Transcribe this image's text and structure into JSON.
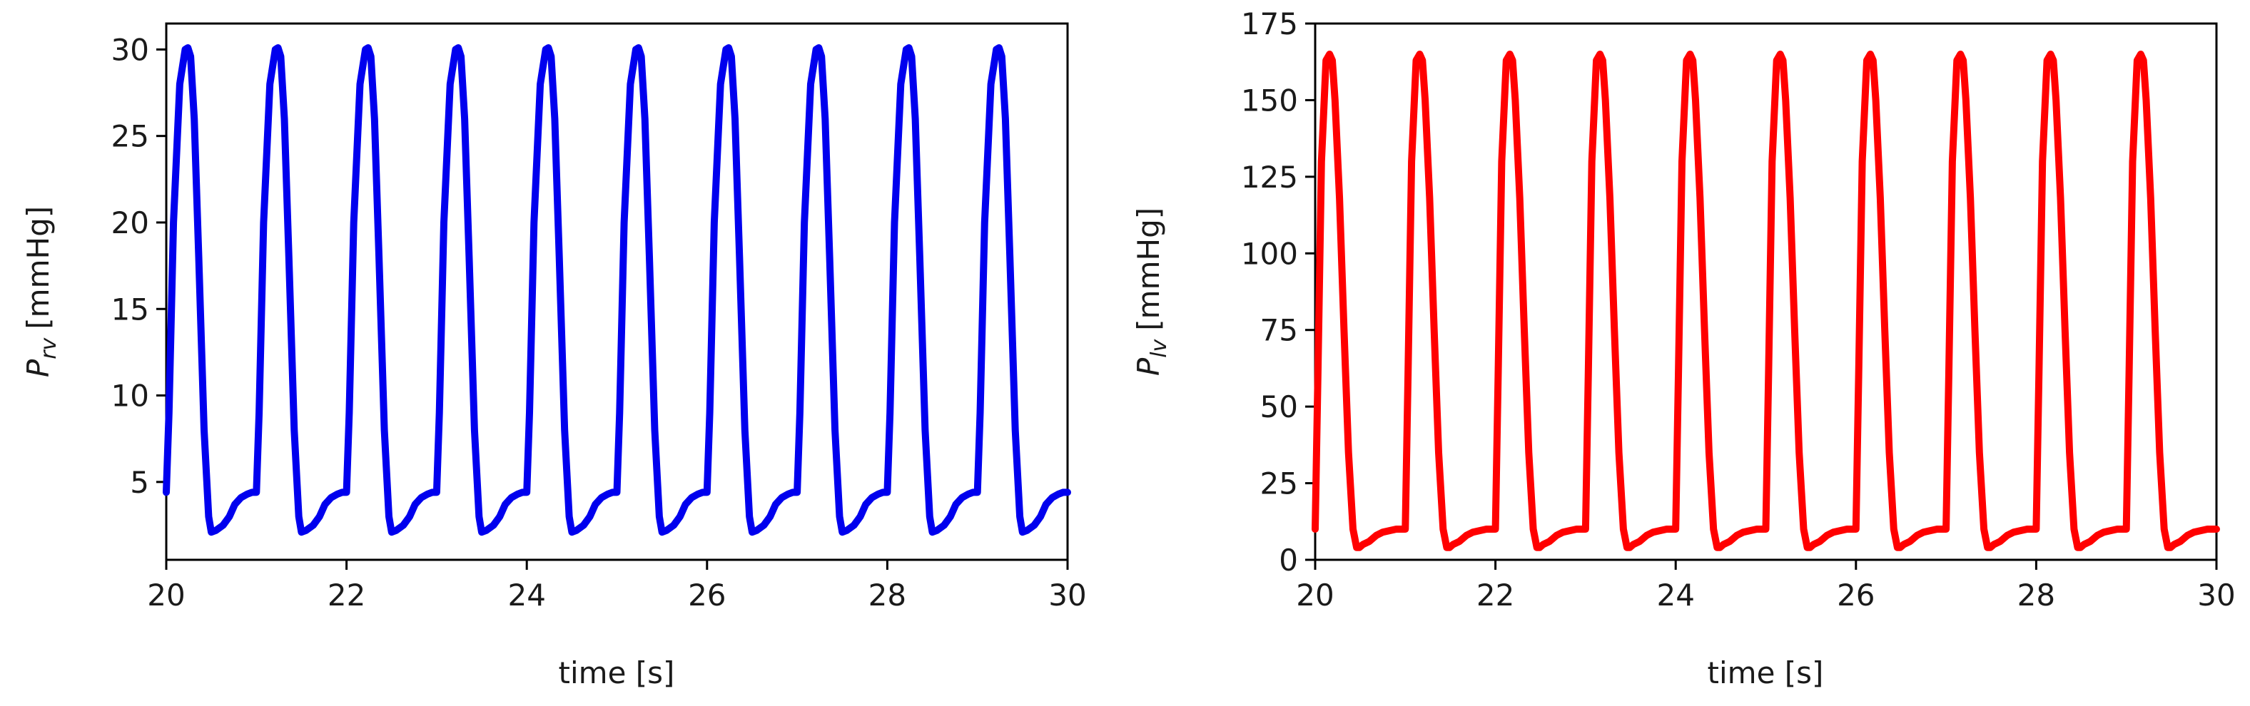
{
  "chart_data": [
    {
      "type": "line",
      "name": "rv",
      "xlabel": "time [s]",
      "ylabel_main": "P",
      "ylabel_sub": "rv",
      "ylabel_unit": "[mmHg]",
      "xlim": [
        20,
        30
      ],
      "ylim": [
        0.5,
        31.5
      ],
      "xticks": [
        20,
        22,
        24,
        26,
        28,
        30
      ],
      "yticks": [
        5,
        10,
        15,
        20,
        25,
        30
      ],
      "color": "#0000ee",
      "series": [
        {
          "name": "P_rv",
          "cycle_start": 20.0,
          "period": 1.0,
          "cycles": 10,
          "cycle_shape": {
            "t_offset": [
              0.0,
              0.03,
              0.08,
              0.15,
              0.21,
              0.24,
              0.27,
              0.31,
              0.36,
              0.42,
              0.47,
              0.5,
              0.55,
              0.63,
              0.7,
              0.76,
              0.83,
              0.9,
              0.95,
              1.0
            ],
            "p": [
              4.4,
              9.0,
              20.0,
              28.0,
              30.0,
              30.1,
              29.6,
              26.0,
              18.0,
              8.0,
              3.0,
              2.1,
              2.2,
              2.5,
              3.0,
              3.7,
              4.1,
              4.3,
              4.4,
              4.4
            ]
          }
        }
      ]
    },
    {
      "type": "line",
      "name": "lv",
      "xlabel": "time [s]",
      "ylabel_main": "P",
      "ylabel_sub": "lv",
      "ylabel_unit": "[mmHg]",
      "xlim": [
        20,
        30
      ],
      "ylim": [
        0,
        175
      ],
      "xticks": [
        20,
        22,
        24,
        26,
        28,
        30
      ],
      "yticks": [
        0,
        25,
        50,
        75,
        100,
        125,
        150,
        175
      ],
      "color": "#ff0000",
      "series": [
        {
          "name": "P_lv",
          "cycle_start": 20.0,
          "period": 1.0,
          "cycles": 10,
          "cycle_shape": {
            "t_offset": [
              0.0,
              0.03,
              0.07,
              0.12,
              0.16,
              0.19,
              0.22,
              0.27,
              0.32,
              0.37,
              0.42,
              0.46,
              0.49,
              0.53,
              0.6,
              0.68,
              0.75,
              0.82,
              0.9,
              0.96,
              1.0
            ],
            "p": [
              10,
              60,
              130,
              163,
              165,
              163,
              150,
              118,
              75,
              35,
              10,
              4,
              4,
              5,
              6,
              8,
              9,
              9.5,
              10,
              10,
              10
            ]
          }
        }
      ]
    }
  ]
}
